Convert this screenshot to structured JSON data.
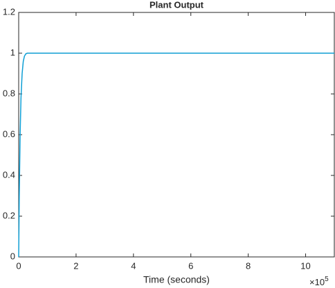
{
  "chart_data": {
    "type": "line",
    "title": "Plant Output",
    "x_label": "Time (seconds)",
    "x_multiplier": {
      "base": "×10",
      "exponent": "5"
    },
    "x": [
      0,
      0.02,
      0.05,
      0.08,
      0.12,
      0.16,
      0.2,
      0.25,
      0.3,
      1,
      11
    ],
    "series": [
      {
        "name": "Plant Output",
        "color": "#0e9ed4",
        "values": [
          0,
          0.3,
          0.6,
          0.78,
          0.9,
          0.96,
          0.985,
          0.997,
          1,
          1,
          1
        ]
      }
    ],
    "xlim": [
      0,
      11
    ],
    "xticks": [
      0,
      2,
      4,
      6,
      8,
      10
    ],
    "ylim": [
      0,
      1.2
    ],
    "yticks": [
      0,
      0.2,
      0.4,
      0.6,
      0.8,
      1,
      1.2
    ],
    "grid": false
  }
}
